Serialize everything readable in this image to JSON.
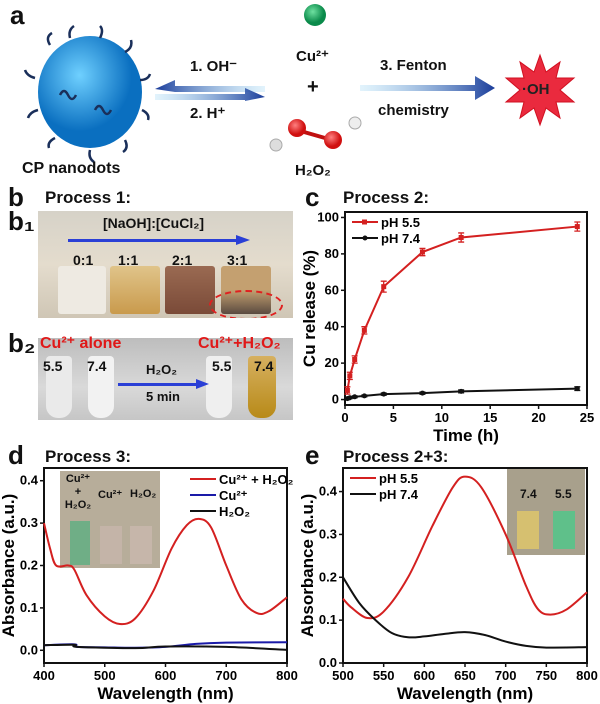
{
  "panel_a": {
    "label": "a",
    "nanodots": "CP nanodots",
    "step1": "1. OH⁻",
    "step2": "2. H⁺",
    "cu": "Cu²⁺",
    "plus": "+",
    "h2o2": "H₂O₂",
    "step3a": "3. Fenton",
    "step3b": "chemistry",
    "oh": "·OH"
  },
  "panel_b": {
    "label": "b",
    "title": "Process 1:",
    "b1_label": "b₁",
    "b2_label": "b₂",
    "ratio_title": "[NaOH]:[CuCl₂]",
    "ratios": [
      "0:1",
      "1:1",
      "2:1",
      "3:1"
    ],
    "cu_alone": "Cu²⁺ alone",
    "cu_h2o2": "Cu²⁺+H₂O₂",
    "ph_left": [
      "5.5",
      "7.4"
    ],
    "ph_right": [
      "5.5",
      "7.4"
    ],
    "arrow_top": "H₂O₂",
    "arrow_bottom": "5 min"
  },
  "colors": {
    "red": "#d42020",
    "blue": "#1a1aa8",
    "black": "#111111",
    "arrow": "#2a3fd6"
  },
  "chart_data": [
    {
      "id": "c",
      "label": "c",
      "title": "Process 2:",
      "type": "line",
      "xlabel": "Time (h)",
      "ylabel": "Cu release (%)",
      "xlim": [
        0,
        25
      ],
      "ylim": [
        -3,
        103
      ],
      "xticks": [
        0,
        5,
        10,
        15,
        20,
        25
      ],
      "yticks": [
        0,
        20,
        40,
        60,
        80,
        100
      ],
      "legend": "top-left",
      "series": [
        {
          "name": "pH 5.5",
          "color": "#d42020",
          "x": [
            0.25,
            0.5,
            1,
            2,
            4,
            8,
            12,
            24
          ],
          "y": [
            5,
            13,
            22,
            38,
            62,
            81,
            89,
            95
          ],
          "err": [
            2,
            2,
            2,
            2,
            3,
            2,
            2.5,
            2.5
          ]
        },
        {
          "name": "pH 7.4",
          "color": "#111111",
          "x": [
            0.25,
            0.5,
            1,
            2,
            4,
            8,
            12,
            24
          ],
          "y": [
            0.5,
            1,
            1.5,
            2,
            3,
            3.5,
            4.5,
            6
          ],
          "err": [
            0.5,
            0.5,
            0.5,
            0.5,
            0.6,
            0.6,
            0.8,
            1
          ]
        }
      ]
    },
    {
      "id": "d",
      "label": "d",
      "title": "Process 3:",
      "type": "line",
      "xlabel": "Wavelength (nm)",
      "ylabel": "Absorbance (a.u.)",
      "xlim": [
        400,
        800
      ],
      "ylim": [
        -0.03,
        0.43
      ],
      "xticks": [
        400,
        500,
        600,
        700,
        800
      ],
      "yticks": [
        0.0,
        0.1,
        0.2,
        0.3,
        0.4
      ],
      "legend": "top-right",
      "inset_labels": [
        "Cu²⁺",
        "+",
        "H₂O₂",
        "Cu²⁺",
        "H₂O₂"
      ],
      "series": [
        {
          "name": "Cu²⁺ + H₂O₂",
          "color": "#d42020",
          "x": [
            400,
            410,
            420,
            440,
            450,
            470,
            500,
            525,
            550,
            580,
            610,
            635,
            655,
            675,
            700,
            725,
            750,
            770,
            800
          ],
          "y": [
            0.3,
            0.24,
            0.2,
            0.2,
            0.19,
            0.13,
            0.08,
            0.062,
            0.075,
            0.14,
            0.24,
            0.295,
            0.31,
            0.29,
            0.2,
            0.12,
            0.088,
            0.092,
            0.125
          ]
        },
        {
          "name": "Cu²⁺",
          "color": "#1a1aa8",
          "x": [
            400,
            450,
            455,
            500,
            550,
            600,
            650,
            700,
            800
          ],
          "y": [
            0.012,
            0.014,
            0.008,
            0.007,
            0.006,
            0.008,
            0.015,
            0.018,
            0.019
          ]
        },
        {
          "name": "H₂O₂",
          "color": "#111111",
          "x": [
            400,
            450,
            455,
            550,
            600,
            700,
            800
          ],
          "y": [
            0.012,
            0.013,
            0.008,
            0.005,
            0.009,
            0.008,
            0.001
          ]
        }
      ]
    },
    {
      "id": "e",
      "label": "e",
      "title": "Process 2+3:",
      "type": "line",
      "xlabel": "Wavelength (nm)",
      "ylabel": "Absorbance (a.u.)",
      "xlim": [
        500,
        800
      ],
      "ylim": [
        0,
        0.455
      ],
      "xticks": [
        500,
        550,
        600,
        650,
        700,
        750,
        800
      ],
      "yticks": [
        0.0,
        0.1,
        0.2,
        0.3,
        0.4
      ],
      "legend": "top-left",
      "inset_labels": [
        "7.4",
        "5.5"
      ],
      "series": [
        {
          "name": "pH 5.5",
          "color": "#d42020",
          "x": [
            500,
            510,
            530,
            550,
            580,
            610,
            635,
            650,
            670,
            700,
            725,
            740,
            755,
            775,
            800
          ],
          "y": [
            0.15,
            0.13,
            0.105,
            0.12,
            0.2,
            0.32,
            0.41,
            0.435,
            0.41,
            0.3,
            0.18,
            0.125,
            0.113,
            0.125,
            0.165
          ]
        },
        {
          "name": "pH 7.4",
          "color": "#111111",
          "x": [
            500,
            520,
            540,
            560,
            580,
            600,
            625,
            650,
            675,
            700,
            725,
            750,
            800
          ],
          "y": [
            0.2,
            0.14,
            0.1,
            0.07,
            0.06,
            0.062,
            0.068,
            0.072,
            0.065,
            0.05,
            0.04,
            0.036,
            0.037
          ]
        }
      ]
    }
  ]
}
